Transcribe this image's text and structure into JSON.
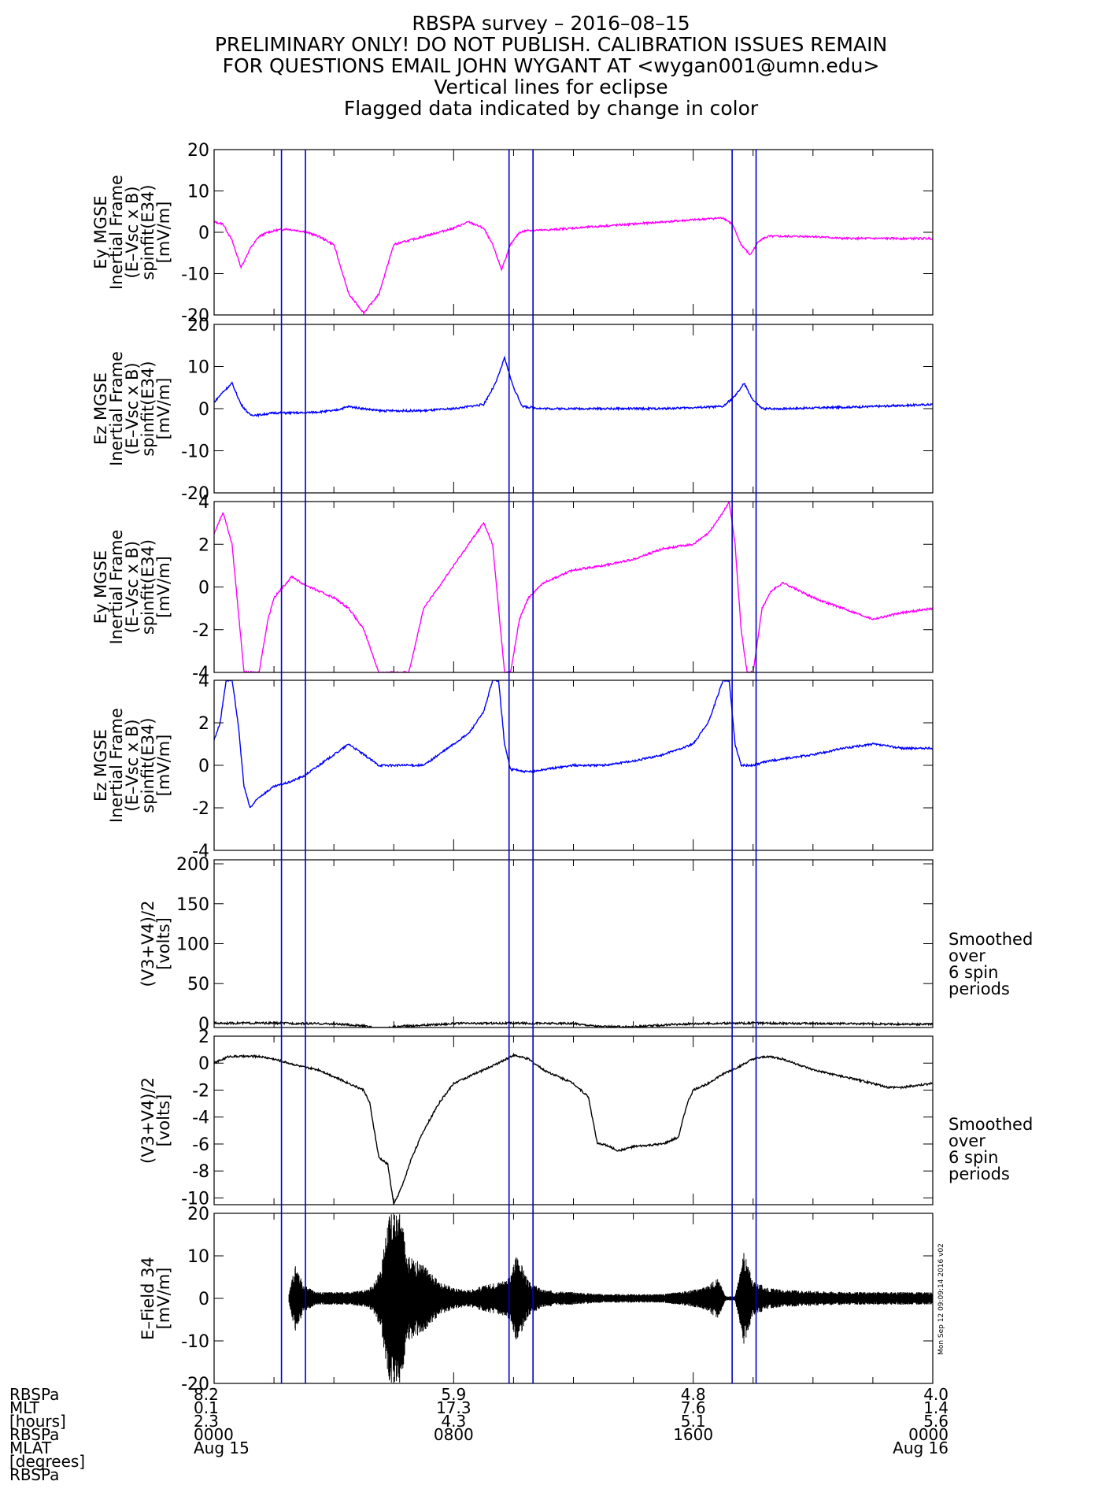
{
  "header": {
    "lines": [
      "RBSPA survey – 2016–08–15",
      "PRELIMINARY ONLY! DO NOT PUBLISH. CALIBRATION ISSUES REMAIN",
      "FOR QUESTIONS EMAIL JOHN WYGANT AT <wygan001@umn.edu>",
      "Vertical lines for eclipse",
      "Flagged data indicated by change in color"
    ]
  },
  "colors": {
    "magenta": "#ff00ff",
    "blue": "#0000ff",
    "black": "#000000",
    "eclipse": "#0000cc"
  },
  "eclipse_hours": [
    2.25,
    3.05,
    9.85,
    10.65,
    17.3,
    18.1
  ],
  "side_note": [
    "Smoothed",
    "over",
    "6 spin",
    "periods"
  ],
  "stamp": "Mon Sep 12 09:09:14 2016 v02",
  "chart_data": [
    {
      "type": "line",
      "ylabel": [
        "Ey MGSE",
        "Inertial Frame",
        "(E–Vsc x B)",
        "spinfit(E34)",
        "[mV/m]"
      ],
      "ylim": [
        -20,
        20
      ],
      "yticks": [
        20,
        10,
        0,
        -10,
        -20
      ],
      "color": "magenta",
      "x_hours": [
        0,
        0.3,
        0.6,
        0.9,
        1.2,
        1.5,
        1.8,
        2.1,
        2.4,
        2.7,
        3.0,
        3.5,
        4.0,
        4.5,
        5.0,
        5.5,
        6.0,
        6.5,
        7.0,
        7.5,
        8.0,
        8.5,
        9.0,
        9.3,
        9.6,
        9.9,
        10.2,
        10.5,
        11.0,
        12.0,
        13.0,
        14.0,
        15.0,
        16.0,
        17.0,
        17.3,
        17.6,
        17.9,
        18.2,
        18.5,
        19.0,
        20.0,
        21.0,
        22.0,
        23.0,
        24.0
      ],
      "values": [
        2.5,
        2.0,
        -2.0,
        -8.5,
        -4.0,
        -1.0,
        0.0,
        0.5,
        0.8,
        0.5,
        0.2,
        -1.0,
        -3.0,
        -15.0,
        -19.5,
        -15.0,
        -3.0,
        -2.0,
        -1.0,
        0.0,
        1.0,
        2.5,
        1.0,
        -3.0,
        -9.0,
        -3.0,
        0.0,
        0.5,
        0.5,
        1.0,
        1.5,
        2.0,
        2.5,
        3.0,
        3.5,
        2.0,
        -3.0,
        -5.5,
        -2.0,
        -1.0,
        -1.0,
        -1.0,
        -1.5,
        -1.5,
        -1.5,
        -1.5
      ],
      "side_note": false
    },
    {
      "type": "line",
      "ylabel": [
        "Ez MGSE",
        "Inertial Frame",
        "(E–Vsc x B)",
        "spinfit(E34)",
        "[mV/m]"
      ],
      "ylim": [
        -20,
        20
      ],
      "yticks": [
        20,
        10,
        0,
        -10,
        -20
      ],
      "color": "blue",
      "x_hours": [
        0,
        0.3,
        0.6,
        0.9,
        1.2,
        1.5,
        2.0,
        3.0,
        4.0,
        4.5,
        5.0,
        5.5,
        6.0,
        6.5,
        7.0,
        8.0,
        9.0,
        9.4,
        9.7,
        10.0,
        10.3,
        11.0,
        13.0,
        15.0,
        17.0,
        17.4,
        17.7,
        18.0,
        18.3,
        19.0,
        22.0,
        24.0
      ],
      "values": [
        1.5,
        4.0,
        6.0,
        1.0,
        -1.5,
        -1.5,
        -1.0,
        -1.0,
        -0.5,
        0.5,
        0.0,
        -0.5,
        -0.5,
        -0.5,
        -0.5,
        0.0,
        1.0,
        6.0,
        12.0,
        5.0,
        0.5,
        0.0,
        0.0,
        0.0,
        0.5,
        3.0,
        6.0,
        2.0,
        0.0,
        0.0,
        0.5,
        1.0
      ],
      "side_note": false
    },
    {
      "type": "line",
      "ylabel": [
        "Ey MGSE",
        "Inertial Frame",
        "(E–Vsc x B)",
        "spinfit(E34)",
        "[mV/m]"
      ],
      "ylim": [
        -4,
        4
      ],
      "yticks": [
        4,
        2,
        0,
        -2,
        -4
      ],
      "color": "magenta",
      "x_hours": [
        0,
        0.3,
        0.6,
        0.8,
        1.0,
        1.2,
        1.5,
        1.8,
        2.0,
        2.3,
        2.6,
        2.9,
        3.2,
        3.5,
        4.0,
        4.5,
        5.0,
        5.5,
        6.0,
        6.5,
        7.0,
        7.5,
        8.0,
        8.5,
        9.0,
        9.3,
        9.5,
        9.7,
        9.9,
        10.2,
        10.5,
        11.0,
        12.0,
        13.0,
        14.0,
        15.0,
        16.0,
        16.5,
        17.0,
        17.2,
        17.4,
        17.6,
        17.8,
        18.0,
        18.3,
        18.6,
        19.0,
        20.0,
        21.0,
        22.0,
        23.0,
        24.0
      ],
      "values": [
        2.5,
        3.5,
        2.0,
        -1.0,
        -4.0,
        -4.0,
        -4.0,
        -1.5,
        -0.5,
        0.0,
        0.5,
        0.2,
        0.0,
        -0.2,
        -0.5,
        -1.0,
        -2.0,
        -4.0,
        -4.0,
        -4.0,
        -1.0,
        0.0,
        1.0,
        2.0,
        3.0,
        2.0,
        -1.0,
        -4.0,
        -4.0,
        -1.5,
        -0.5,
        0.2,
        0.8,
        1.0,
        1.3,
        1.8,
        2.0,
        2.5,
        3.5,
        4.0,
        2.0,
        -2.0,
        -4.0,
        -4.0,
        -1.0,
        -0.2,
        0.2,
        -0.5,
        -1.0,
        -1.5,
        -1.2,
        -1.0
      ],
      "side_note": false
    },
    {
      "type": "line",
      "ylabel": [
        "Ez MGSE",
        "Inertial Frame",
        "(E–Vsc x B)",
        "spinfit(E34)",
        "[mV/m]"
      ],
      "ylim": [
        -4,
        4
      ],
      "yticks": [
        4,
        2,
        0,
        -2,
        -4
      ],
      "color": "blue",
      "x_hours": [
        0,
        0.2,
        0.4,
        0.6,
        0.8,
        1.0,
        1.2,
        1.5,
        2.0,
        2.5,
        3.0,
        3.5,
        4.0,
        4.5,
        5.0,
        5.5,
        6.0,
        6.5,
        7.0,
        7.5,
        8.0,
        8.5,
        9.0,
        9.3,
        9.5,
        9.7,
        9.9,
        10.1,
        10.3,
        10.6,
        11.0,
        12.0,
        13.0,
        14.0,
        15.0,
        16.0,
        16.5,
        17.0,
        17.2,
        17.4,
        17.6,
        17.8,
        18.0,
        18.5,
        19.0,
        20.0,
        21.0,
        22.0,
        23.0,
        24.0
      ],
      "values": [
        1.2,
        2.0,
        4.0,
        4.0,
        2.0,
        -1.0,
        -2.0,
        -1.5,
        -1.0,
        -0.8,
        -0.5,
        0.0,
        0.5,
        1.0,
        0.5,
        0.0,
        0.0,
        0.0,
        0.0,
        0.5,
        1.0,
        1.5,
        2.5,
        4.0,
        4.0,
        1.0,
        -0.2,
        -0.2,
        -0.3,
        -0.3,
        -0.2,
        0.0,
        0.0,
        0.2,
        0.5,
        1.0,
        2.0,
        4.0,
        4.0,
        1.0,
        0.0,
        0.0,
        0.0,
        0.2,
        0.3,
        0.5,
        0.8,
        1.0,
        0.8,
        0.8
      ],
      "side_note": false
    },
    {
      "type": "line",
      "ylabel": [
        "(V3+V4)/2",
        "[volts]"
      ],
      "ylim": [
        -5,
        205
      ],
      "yticks": [
        200,
        150,
        100,
        50,
        0
      ],
      "color": "black",
      "x_hours": [
        0,
        2.0,
        4.0,
        5.0,
        5.5,
        6.0,
        7.0,
        8.0,
        10.0,
        12.0,
        13.0,
        14.0,
        16.0,
        18.0,
        20.0,
        22.0,
        24.0
      ],
      "values": [
        0.5,
        0.5,
        -0.5,
        -3.0,
        -7.0,
        -4.0,
        -2.0,
        0.0,
        0.5,
        0.0,
        -4.0,
        -4.0,
        0.0,
        0.5,
        0.0,
        -0.5,
        -1.0
      ],
      "side_note": true
    },
    {
      "type": "line",
      "ylabel": [
        "(V3+V4)/2",
        "[volts]"
      ],
      "ylim": [
        -10.5,
        2
      ],
      "yticks": [
        2,
        0,
        -2,
        -4,
        -6,
        -8,
        -10
      ],
      "color": "black",
      "x_hours": [
        0,
        0.5,
        1.0,
        1.5,
        2.0,
        2.5,
        3.0,
        3.5,
        4.0,
        4.5,
        5.0,
        5.2,
        5.5,
        5.8,
        6.0,
        6.3,
        6.6,
        7.0,
        7.5,
        8.0,
        8.5,
        9.0,
        9.5,
        10.0,
        10.5,
        11.0,
        12.0,
        12.5,
        12.8,
        13.0,
        13.5,
        14.0,
        15.0,
        15.5,
        15.8,
        16.0,
        16.5,
        17.0,
        17.5,
        18.0,
        18.5,
        19.0,
        20.0,
        21.0,
        22.0,
        22.5,
        23.0,
        24.0
      ],
      "values": [
        0.0,
        0.5,
        0.5,
        0.5,
        0.3,
        0.0,
        -0.3,
        -0.5,
        -1.0,
        -1.5,
        -2.0,
        -3.0,
        -7.0,
        -7.5,
        -10.5,
        -9.0,
        -7.0,
        -5.0,
        -3.0,
        -1.5,
        -1.0,
        -0.5,
        0.0,
        0.6,
        0.3,
        -0.5,
        -1.5,
        -2.5,
        -6.0,
        -6.0,
        -6.5,
        -6.2,
        -6.0,
        -5.5,
        -3.0,
        -2.0,
        -1.5,
        -0.8,
        -0.3,
        0.3,
        0.5,
        0.3,
        -0.5,
        -1.0,
        -1.5,
        -1.8,
        -1.8,
        -1.5
      ],
      "side_note": true
    },
    {
      "type": "line",
      "ylabel": [
        "E–Field 34",
        "[mV/m]"
      ],
      "ylim": [
        -20,
        20
      ],
      "yticks": [
        20,
        10,
        0,
        -10,
        -20
      ],
      "color": "black",
      "envelope": true,
      "x_hours": [
        2.5,
        2.7,
        3.0,
        3.5,
        4.0,
        4.5,
        5.0,
        5.3,
        5.6,
        5.8,
        6.0,
        6.2,
        6.5,
        7.0,
        7.5,
        8.0,
        8.5,
        9.0,
        9.5,
        9.9,
        10.1,
        10.5,
        11.0,
        12.0,
        13.0,
        14.0,
        15.0,
        16.0,
        16.5,
        16.8,
        17.1,
        17.4,
        17.7,
        18.0,
        18.5,
        19.0,
        20.0,
        21.0,
        22.0,
        23.0,
        24.0
      ],
      "env_amp": [
        1.0,
        8.0,
        3.0,
        1.5,
        1.5,
        1.5,
        2.0,
        3.0,
        8.0,
        20.0,
        20.0,
        20.0,
        10.0,
        8.0,
        4.0,
        2.5,
        2.0,
        3.0,
        4.0,
        5.0,
        11.0,
        4.0,
        2.0,
        1.5,
        1.0,
        1.0,
        1.0,
        2.0,
        3.0,
        5.0,
        0.5,
        0.5,
        11.0,
        4.0,
        2.5,
        2.0,
        1.8,
        1.5,
        1.5,
        1.5,
        1.5
      ],
      "side_note": false
    }
  ],
  "x_axis": {
    "range_hours": [
      0,
      24
    ],
    "tick_hours": [
      0,
      8,
      16,
      24
    ],
    "row_labels": [
      "RBSPa",
      "MLT",
      "[hours]",
      "RBSPa",
      "MLAT",
      "[degrees]",
      "RBSPa"
    ],
    "columns": [
      [
        "8.2",
        "0.1",
        "2.3",
        "0000",
        "Aug 15"
      ],
      [
        "5.9",
        "17.3",
        "4.3",
        "0800",
        ""
      ],
      [
        "4.8",
        "7.6",
        "5.1",
        "1600",
        ""
      ],
      [
        "4.0",
        "1.4",
        "5.6",
        "0000",
        "Aug 16"
      ]
    ]
  }
}
